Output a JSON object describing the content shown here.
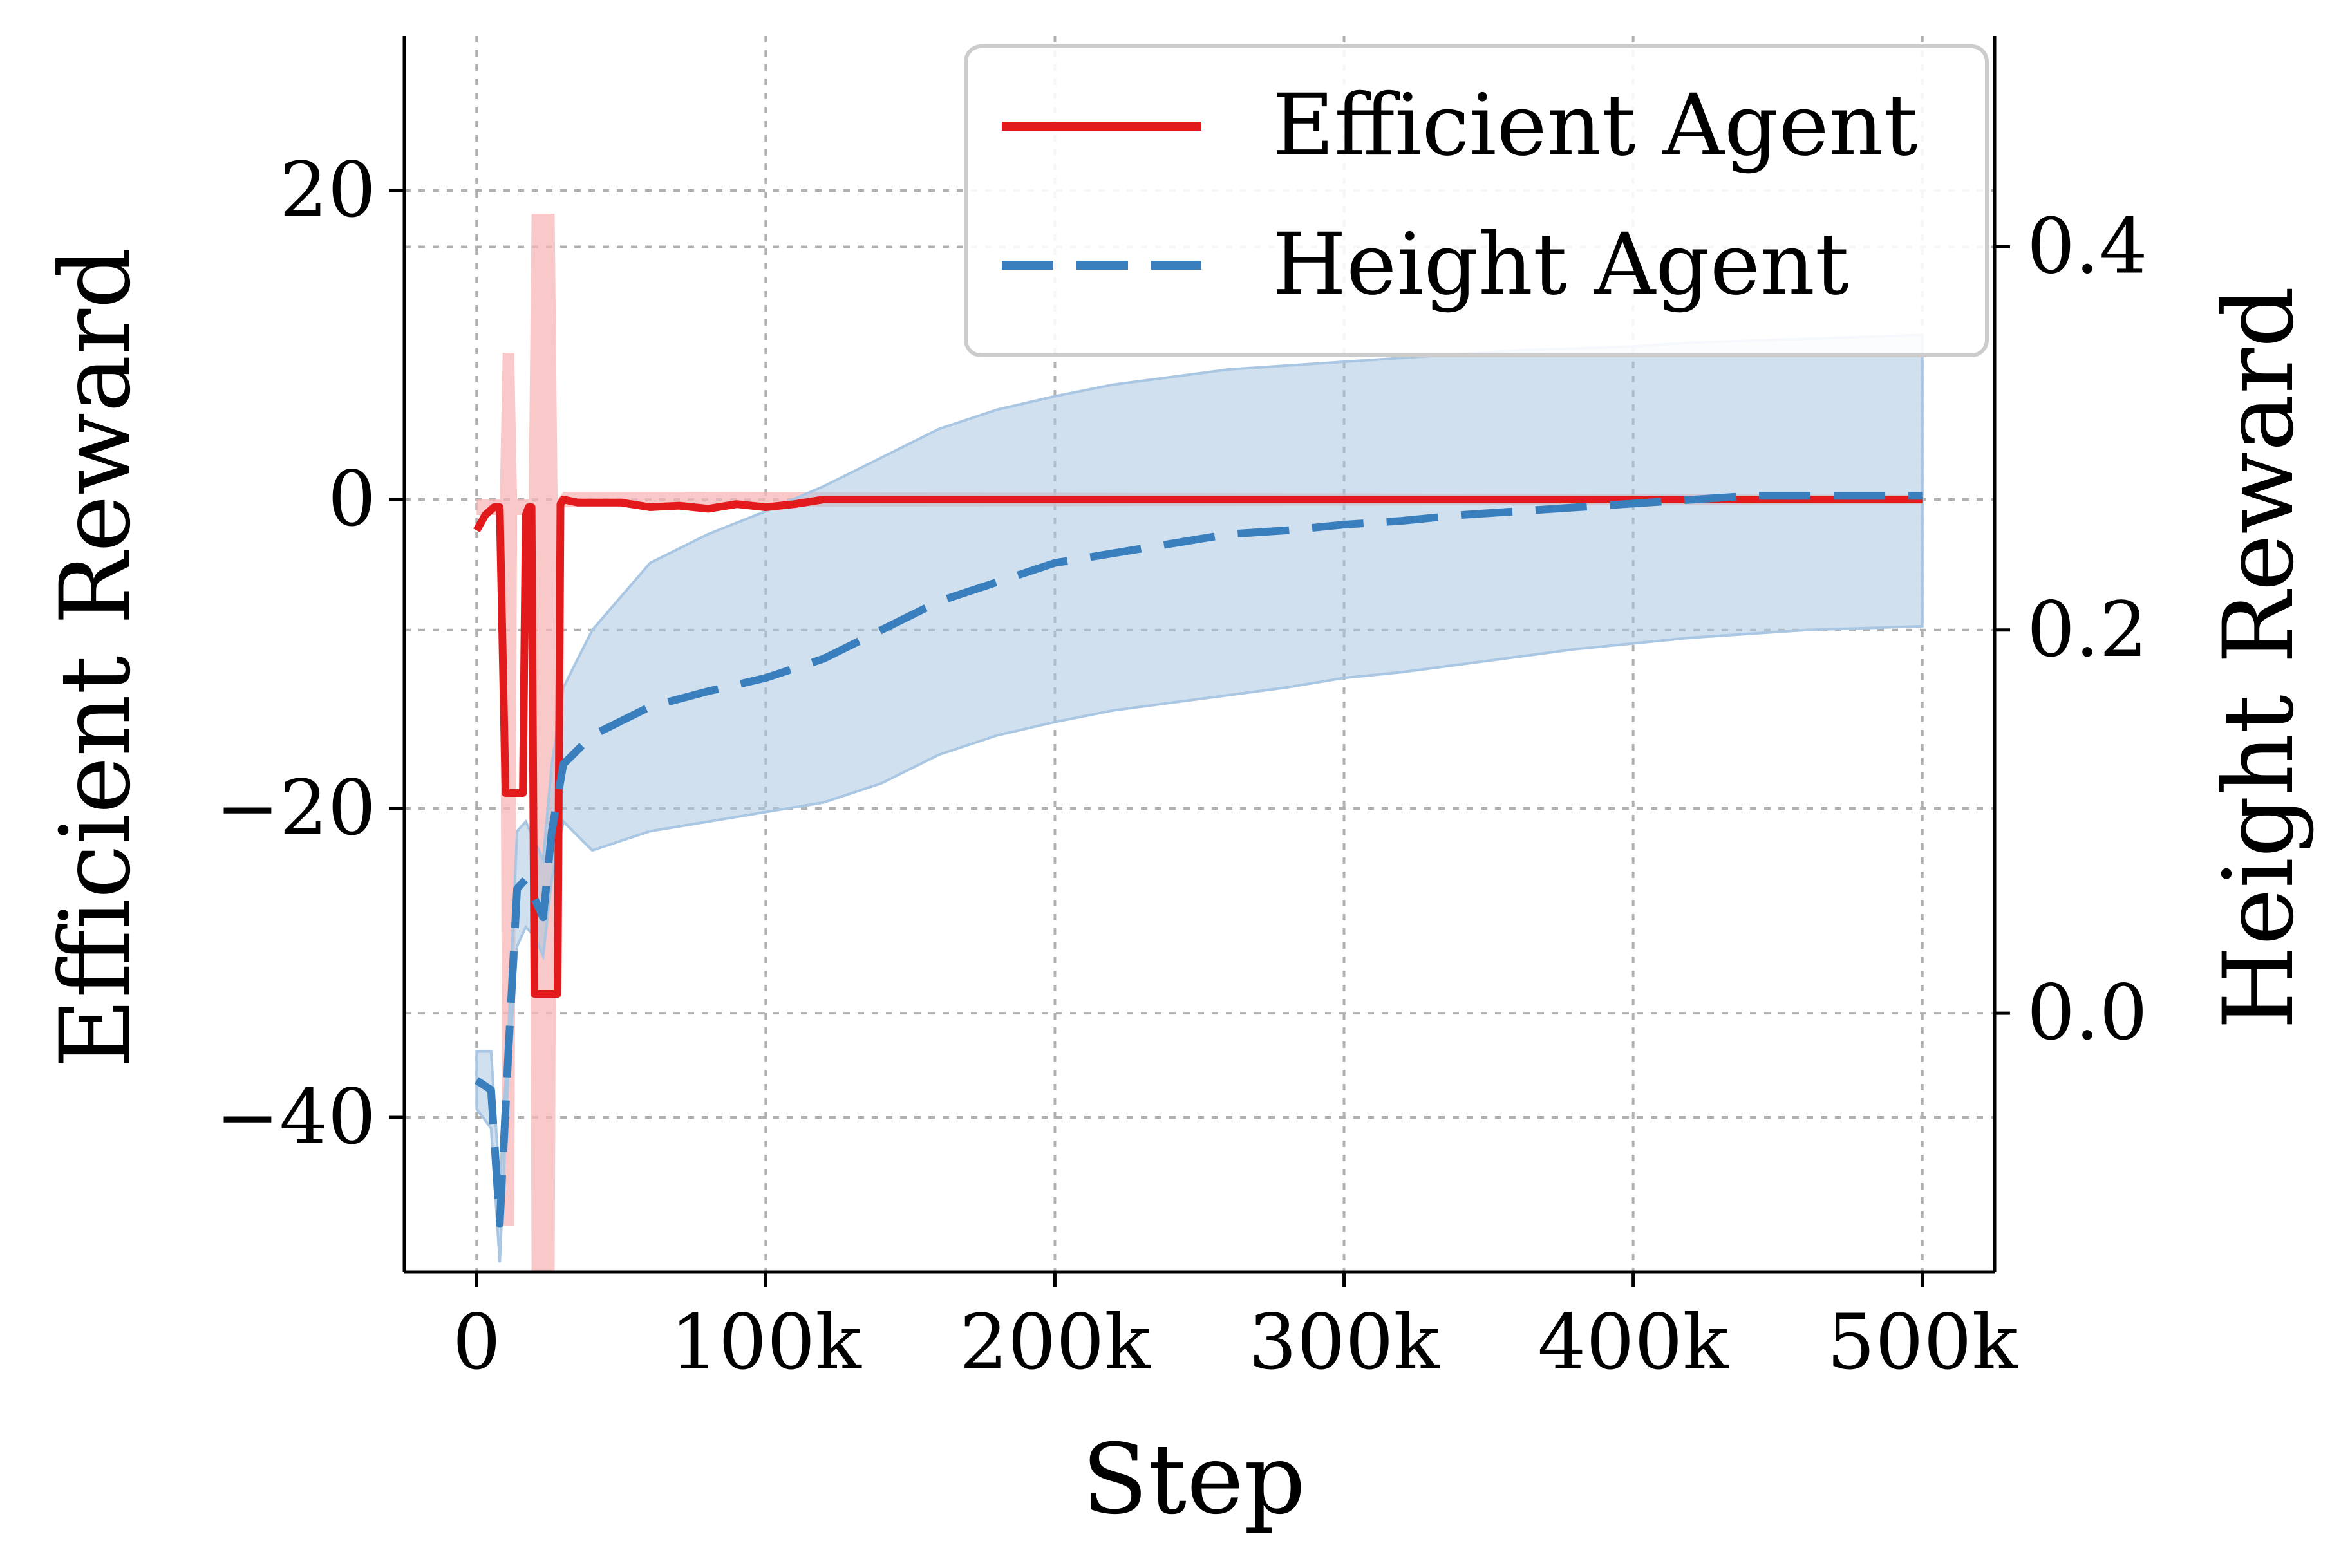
{
  "chart_data": {
    "type": "line",
    "xlabel": "Step",
    "ylabel_left": "Efficient Reward",
    "ylabel_right": "Height Reward",
    "xlim": [
      -25000,
      525000
    ],
    "ylim_left": [
      -50,
      30
    ],
    "ylim_right": [
      -0.135,
      0.51
    ],
    "x_ticks": [
      0,
      100000,
      200000,
      300000,
      400000,
      500000
    ],
    "x_tick_labels": [
      "0",
      "100k",
      "200k",
      "300k",
      "400k",
      "500k"
    ],
    "y_left_ticks": [
      20,
      0,
      -20,
      -40
    ],
    "y_left_tick_labels": [
      "20",
      "0",
      "−20",
      "−40"
    ],
    "y_right_ticks": [
      0.4,
      0.2,
      0.0
    ],
    "y_right_tick_labels": [
      "0.4",
      "0.2",
      "0.0"
    ],
    "grid": true,
    "legend_position": "top-right",
    "colors": {
      "efficient": "#e31a1c",
      "efficient_band": "#f7b6b6",
      "height": "#3a7fbd",
      "height_band": "#a9c6e2"
    },
    "series": [
      {
        "name": "Efficient Agent",
        "axis": "left",
        "style": "solid",
        "x": [
          0,
          3000,
          6000,
          8000,
          10000,
          12000,
          14000,
          16000,
          17000,
          18000,
          19000,
          20000,
          22000,
          24000,
          26000,
          28000,
          29000,
          30000,
          35000,
          40000,
          50000,
          60000,
          70000,
          80000,
          90000,
          100000,
          110000,
          120000,
          150000,
          200000,
          300000,
          400000,
          500000
        ],
        "y": [
          -2,
          -1,
          -0.5,
          -0.5,
          -19,
          -19,
          -19,
          -19,
          -1,
          -0.5,
          -0.5,
          -32,
          -32,
          -32,
          -32,
          -32,
          -0.3,
          0,
          -0.2,
          -0.2,
          -0.2,
          -0.5,
          -0.4,
          -0.6,
          -0.3,
          -0.5,
          -0.3,
          0,
          0,
          0,
          0,
          0,
          0
        ],
        "band_x": [
          0,
          8000,
          9000,
          13000,
          14000,
          18000,
          19000,
          27000,
          28000,
          30000,
          40000,
          60000,
          500000
        ],
        "band_low": [
          -1,
          -1,
          -47,
          -47,
          -1,
          -1,
          -50,
          -50,
          -1,
          -0.5,
          -0.5,
          -0.5,
          -0.3
        ],
        "band_high": [
          0,
          0,
          9.5,
          9.5,
          0,
          0,
          18.5,
          18.5,
          0,
          0.5,
          0.5,
          0.5,
          0.3
        ]
      },
      {
        "name": "Height Agent",
        "axis": "right",
        "style": "dashed",
        "x": [
          0,
          5000,
          8000,
          11000,
          14000,
          17000,
          20000,
          23000,
          26000,
          30000,
          40000,
          60000,
          80000,
          100000,
          120000,
          140000,
          160000,
          180000,
          200000,
          220000,
          240000,
          260000,
          280000,
          300000,
          320000,
          340000,
          360000,
          380000,
          400000,
          420000,
          440000,
          460000,
          480000,
          500000
        ],
        "y": [
          -0.035,
          -0.04,
          -0.11,
          -0.02,
          0.065,
          0.07,
          0.06,
          0.05,
          0.095,
          0.13,
          0.145,
          0.16,
          0.168,
          0.175,
          0.185,
          0.2,
          0.215,
          0.225,
          0.235,
          0.24,
          0.245,
          0.25,
          0.252,
          0.255,
          0.257,
          0.26,
          0.262,
          0.264,
          0.266,
          0.268,
          0.27,
          0.27,
          0.27,
          0.27
        ],
        "band_low": [
          -0.05,
          -0.06,
          -0.13,
          -0.03,
          0.035,
          0.045,
          0.04,
          0.03,
          0.07,
          0.1,
          0.085,
          0.095,
          0.1,
          0.105,
          0.11,
          0.12,
          0.135,
          0.145,
          0.152,
          0.158,
          0.162,
          0.166,
          0.17,
          0.175,
          0.178,
          0.182,
          0.186,
          0.19,
          0.193,
          0.196,
          0.198,
          0.2,
          0.201,
          0.202
        ],
        "band_high": [
          -0.02,
          -0.02,
          -0.09,
          -0.01,
          0.095,
          0.1,
          0.09,
          0.08,
          0.13,
          0.17,
          0.2,
          0.235,
          0.25,
          0.262,
          0.275,
          0.29,
          0.305,
          0.315,
          0.322,
          0.328,
          0.332,
          0.336,
          0.338,
          0.34,
          0.342,
          0.344,
          0.346,
          0.347,
          0.348,
          0.35,
          0.351,
          0.352,
          0.353,
          0.354
        ]
      }
    ]
  }
}
